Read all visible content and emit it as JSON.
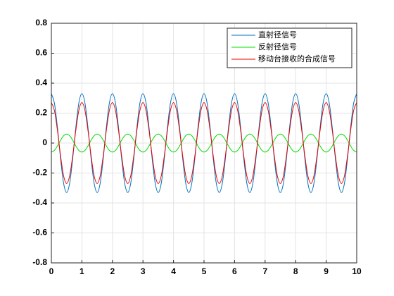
{
  "chart_data": {
    "type": "line",
    "x": [
      0,
      0.1,
      0.2,
      0.3,
      0.4,
      0.5,
      0.6,
      0.7,
      0.8,
      0.9,
      1,
      1.1,
      1.2,
      1.3,
      1.4,
      1.5,
      1.6,
      1.7,
      1.8,
      1.9,
      2,
      2.1,
      2.2,
      2.3,
      2.4,
      2.5,
      2.6,
      2.7,
      2.8,
      2.9,
      3,
      3.1,
      3.2,
      3.3,
      3.4,
      3.5,
      3.6,
      3.7,
      3.8,
      3.9,
      4,
      4.1,
      4.2,
      4.3,
      4.4,
      4.5,
      4.6,
      4.7,
      4.8,
      4.9,
      5,
      5.1,
      5.2,
      5.3,
      5.4,
      5.5,
      5.6,
      5.7,
      5.8,
      5.9,
      6,
      6.1,
      6.2,
      6.3,
      6.4,
      6.5,
      6.6,
      6.7,
      6.8,
      6.9,
      7,
      7.1,
      7.2,
      7.3,
      7.4,
      7.5,
      7.6,
      7.7,
      7.8,
      7.9,
      8,
      8.1,
      8.2,
      8.3,
      8.4,
      8.5,
      8.6,
      8.7,
      8.8,
      8.9,
      9,
      9.1,
      9.2,
      9.3,
      9.4,
      9.5,
      9.6,
      9.7,
      9.8,
      9.9,
      10
    ],
    "series": [
      {
        "name": "直射径信号",
        "color": "#0072bd",
        "values": [
          0.33,
          0.267,
          0.102,
          -0.102,
          -0.267,
          -0.33,
          -0.267,
          -0.102,
          0.102,
          0.267,
          0.33,
          0.267,
          0.102,
          -0.102,
          -0.267,
          -0.33,
          -0.267,
          -0.102,
          0.102,
          0.267,
          0.33,
          0.267,
          0.102,
          -0.102,
          -0.267,
          -0.33,
          -0.267,
          -0.102,
          0.102,
          0.267,
          0.33,
          0.267,
          0.102,
          -0.102,
          -0.267,
          -0.33,
          -0.267,
          -0.102,
          0.102,
          0.267,
          0.33,
          0.267,
          0.102,
          -0.102,
          -0.267,
          -0.33,
          -0.267,
          -0.102,
          0.102,
          0.267,
          0.33,
          0.267,
          0.102,
          -0.102,
          -0.267,
          -0.33,
          -0.267,
          -0.102,
          0.102,
          0.267,
          0.33,
          0.267,
          0.102,
          -0.102,
          -0.267,
          -0.33,
          -0.267,
          -0.102,
          0.102,
          0.267,
          0.33,
          0.267,
          0.102,
          -0.102,
          -0.267,
          -0.33,
          -0.267,
          -0.102,
          0.102,
          0.267,
          0.33,
          0.267,
          0.102,
          -0.102,
          -0.267,
          -0.33,
          -0.267,
          -0.102,
          0.102,
          0.267,
          0.33,
          0.267,
          0.102,
          -0.102,
          -0.267,
          -0.33,
          -0.267,
          -0.102,
          0.102,
          0.267,
          0.33
        ]
      },
      {
        "name": "反射径信号",
        "color": "#00dd00",
        "values": [
          -0.06,
          -0.049,
          -0.019,
          0.019,
          0.049,
          0.06,
          0.049,
          0.019,
          -0.019,
          -0.049,
          -0.06,
          -0.049,
          -0.019,
          0.019,
          0.049,
          0.06,
          0.049,
          0.019,
          -0.019,
          -0.049,
          -0.06,
          -0.049,
          -0.019,
          0.019,
          0.049,
          0.06,
          0.049,
          0.019,
          -0.019,
          -0.049,
          -0.06,
          -0.049,
          -0.019,
          0.019,
          0.049,
          0.06,
          0.049,
          0.019,
          -0.019,
          -0.049,
          -0.06,
          -0.049,
          -0.019,
          0.019,
          0.049,
          0.06,
          0.049,
          0.019,
          -0.019,
          -0.049,
          -0.06,
          -0.049,
          -0.019,
          0.019,
          0.049,
          0.06,
          0.049,
          0.019,
          -0.019,
          -0.049,
          -0.06,
          -0.049,
          -0.019,
          0.019,
          0.049,
          0.06,
          0.049,
          0.019,
          -0.019,
          -0.049,
          -0.06,
          -0.049,
          -0.019,
          0.019,
          0.049,
          0.06,
          0.049,
          0.019,
          -0.019,
          -0.049,
          -0.06,
          -0.049,
          -0.019,
          0.019,
          0.049,
          0.06,
          0.049,
          0.019,
          -0.019,
          -0.049,
          -0.06,
          -0.049,
          -0.019,
          0.019,
          0.049,
          0.06,
          0.049,
          0.019,
          -0.019,
          -0.049,
          -0.06
        ]
      },
      {
        "name": "移动台接收的合成信号",
        "color": "#ee0000",
        "values": [
          0.27,
          0.218,
          0.083,
          -0.083,
          -0.218,
          -0.27,
          -0.218,
          -0.083,
          0.083,
          0.218,
          0.27,
          0.218,
          0.083,
          -0.083,
          -0.218,
          -0.27,
          -0.218,
          -0.083,
          0.083,
          0.218,
          0.27,
          0.218,
          0.083,
          -0.083,
          -0.218,
          -0.27,
          -0.218,
          -0.083,
          0.083,
          0.218,
          0.27,
          0.218,
          0.083,
          -0.083,
          -0.218,
          -0.27,
          -0.218,
          -0.083,
          0.083,
          0.218,
          0.27,
          0.218,
          0.083,
          -0.083,
          -0.218,
          -0.27,
          -0.218,
          -0.083,
          0.083,
          0.218,
          0.27,
          0.218,
          0.083,
          -0.083,
          -0.218,
          -0.27,
          -0.218,
          -0.083,
          0.083,
          0.218,
          0.27,
          0.218,
          0.083,
          -0.083,
          -0.218,
          -0.27,
          -0.218,
          -0.083,
          0.083,
          0.218,
          0.27,
          0.218,
          0.083,
          -0.083,
          -0.218,
          -0.27,
          -0.218,
          -0.083,
          0.083,
          0.218,
          0.27,
          0.218,
          0.083,
          -0.083,
          -0.218,
          -0.27,
          -0.218,
          -0.083,
          0.083,
          0.218,
          0.27,
          0.218,
          0.083,
          -0.083,
          -0.218,
          -0.27,
          -0.218,
          -0.083,
          0.083,
          0.218,
          0.27
        ]
      }
    ],
    "xlim": [
      0,
      10
    ],
    "xticks": [
      0,
      1,
      2,
      3,
      4,
      5,
      6,
      7,
      8,
      9,
      10
    ],
    "ylim": [
      -0.8,
      0.8
    ],
    "yticks": [
      -0.8,
      -0.6,
      -0.4,
      -0.2,
      0,
      0.2,
      0.4,
      0.6,
      0.8
    ],
    "grid": true,
    "legend": "top-right"
  }
}
